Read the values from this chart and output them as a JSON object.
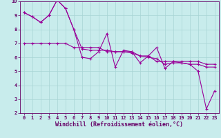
{
  "background_color": "#c8ecec",
  "grid_color": "#a8d4d4",
  "line_color": "#990099",
  "xlim": [
    -0.5,
    23.5
  ],
  "ylim": [
    2,
    10
  ],
  "xticks": [
    0,
    1,
    2,
    3,
    4,
    5,
    6,
    7,
    8,
    9,
    10,
    11,
    12,
    13,
    14,
    15,
    16,
    17,
    18,
    19,
    20,
    21,
    22,
    23
  ],
  "yticks": [
    2,
    3,
    4,
    5,
    6,
    7,
    8,
    9,
    10
  ],
  "xlabel": "Windchill (Refroidissement éolien,°C)",
  "series1_x": [
    0,
    1,
    2,
    3,
    4,
    5,
    6,
    7,
    8,
    9,
    10,
    11,
    12,
    13,
    14,
    15,
    16,
    17,
    18,
    19,
    20,
    21,
    22,
    23
  ],
  "series1_y": [
    9.2,
    8.9,
    8.5,
    9.0,
    10.1,
    9.5,
    8.0,
    6.0,
    5.9,
    6.4,
    7.7,
    5.3,
    6.5,
    6.4,
    5.6,
    6.1,
    6.7,
    5.2,
    5.7,
    5.6,
    5.5,
    5.0,
    2.3,
    3.6
  ],
  "series2_x": [
    0,
    1,
    2,
    3,
    4,
    5,
    6,
    7,
    8,
    9,
    10,
    11,
    12,
    13,
    14,
    15,
    16,
    17,
    18,
    19,
    20,
    21,
    22,
    23
  ],
  "series2_y": [
    9.2,
    8.9,
    8.5,
    9.0,
    10.1,
    9.5,
    8.0,
    6.6,
    6.5,
    6.5,
    6.5,
    6.4,
    6.4,
    6.3,
    6.1,
    6.0,
    5.9,
    5.5,
    5.6,
    5.6,
    5.5,
    5.5,
    5.3,
    5.3
  ],
  "series3_x": [
    0,
    1,
    2,
    3,
    4,
    5,
    6,
    7,
    8,
    9,
    10,
    11,
    12,
    13,
    14,
    15,
    16,
    17,
    18,
    19,
    20,
    21,
    22,
    23
  ],
  "series3_y": [
    7.0,
    7.0,
    7.0,
    7.0,
    7.0,
    7.0,
    6.7,
    6.7,
    6.7,
    6.7,
    6.4,
    6.4,
    6.4,
    6.4,
    6.1,
    6.1,
    5.7,
    5.7,
    5.7,
    5.7,
    5.7,
    5.7,
    5.5,
    5.5
  ],
  "marker": "+",
  "markersize": 3,
  "linewidth": 0.8,
  "tick_fontsize": 5.0,
  "xlabel_fontsize": 6.0,
  "spine_color": "#660066",
  "tick_color": "#660066",
  "label_color": "#660066"
}
